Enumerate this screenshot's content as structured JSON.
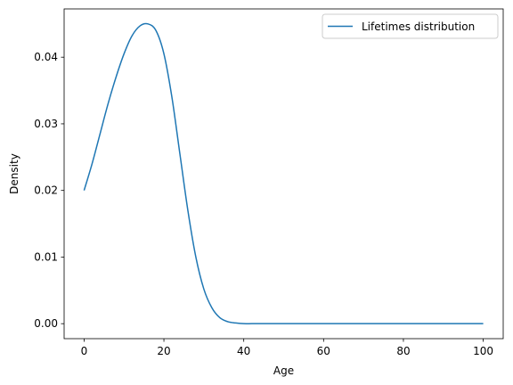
{
  "chart_data": {
    "type": "line",
    "xlabel": "Age",
    "ylabel": "Density",
    "xlim": [
      -5,
      105
    ],
    "ylim": [
      -0.00225,
      0.04725
    ],
    "xticks": [
      0,
      20,
      40,
      60,
      80,
      100
    ],
    "xtick_labels": [
      "0",
      "20",
      "40",
      "60",
      "80",
      "100"
    ],
    "yticks": [
      0.0,
      0.01,
      0.02,
      0.03,
      0.04
    ],
    "ytick_labels": [
      "0.00",
      "0.01",
      "0.02",
      "0.03",
      "0.04"
    ],
    "grid": false,
    "legend_position": "top-right",
    "series": [
      {
        "name": "Lifetimes distribution",
        "color": "#1f77b4",
        "x": [
          0,
          2,
          4,
          6,
          8,
          10,
          12,
          14,
          16,
          18,
          20,
          22,
          24,
          26,
          28,
          30,
          32,
          34,
          36,
          38,
          40,
          42,
          45,
          50,
          60,
          70,
          80,
          90,
          100
        ],
        "y": [
          0.02,
          0.024,
          0.0285,
          0.033,
          0.037,
          0.0405,
          0.0432,
          0.0447,
          0.045,
          0.044,
          0.0405,
          0.034,
          0.0255,
          0.017,
          0.01,
          0.0052,
          0.0024,
          0.0009,
          0.0003,
          0.0001,
          0.0,
          0.0,
          0.0,
          0.0,
          0.0,
          0.0,
          0.0,
          0.0,
          0.0
        ]
      }
    ]
  }
}
